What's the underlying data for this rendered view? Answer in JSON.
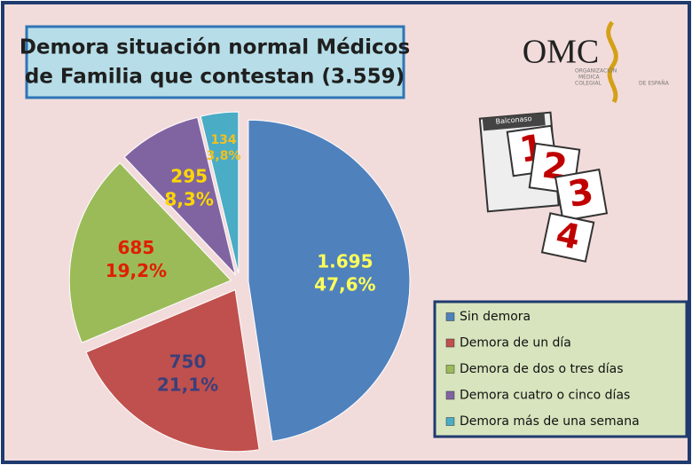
{
  "chart_data": {
    "type": "pie",
    "title": [
      "Demora situación normal Médicos",
      "de Familia que contestan  (3.559)"
    ],
    "categories": [
      "Sin demora",
      "Demora de un día",
      "Demora de dos o tres días",
      "Demora cuatro o cinco días",
      "Demora más de una semana"
    ],
    "values": [
      1695,
      750,
      685,
      295,
      134
    ],
    "value_labels": [
      "1.695",
      "750",
      "685",
      "295",
      "134"
    ],
    "percent_labels": [
      "47,6%",
      "21,1%",
      "19,2%",
      "8,3%",
      "3,8%"
    ],
    "colors": [
      "#4f81bd",
      "#c0504d",
      "#9bbb59",
      "#8064a2",
      "#4bacc6"
    ],
    "label_colors": [
      "#ffff5a",
      "#3b3f7a",
      "#e01e00",
      "#ffd700",
      "#f0c020"
    ],
    "legend": "bottom-right"
  },
  "logo": {
    "text": "OMC",
    "subtitle": [
      "ORGANIZACIÓN",
      "MÉDICA",
      "COLEGIAL",
      "DE ESPAÑA"
    ]
  },
  "illustration": {
    "calendar_header": "Balconaso",
    "numbers": [
      "1",
      "2",
      "3",
      "4"
    ]
  }
}
